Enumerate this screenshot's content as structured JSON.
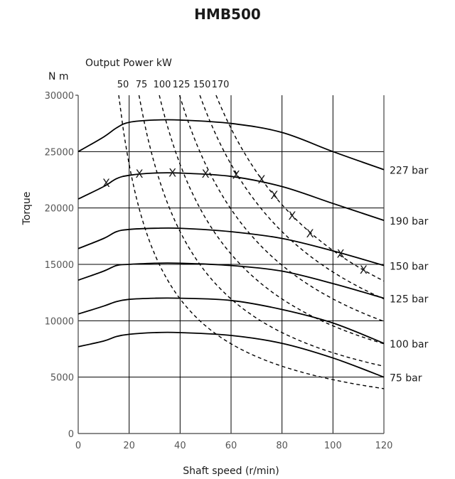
{
  "chart_data": {
    "type": "line",
    "title": "HMB500",
    "xlabel": "Shaft speed (r/min)",
    "ylabel": "Torque",
    "yunit": "N m",
    "power_axis_label": "Output Power kW",
    "xlim": [
      0,
      120
    ],
    "ylim": [
      0,
      30000
    ],
    "xticks": [
      "0",
      "20",
      "40",
      "60",
      "80",
      "100",
      "120"
    ],
    "yticks": [
      "0",
      "5000",
      "10000",
      "15000",
      "20000",
      "25000",
      "30000"
    ],
    "grid": true,
    "torque_series": [
      {
        "name": "227 bar",
        "points": [
          [
            0,
            25000
          ],
          [
            10,
            26300
          ],
          [
            15,
            27100
          ],
          [
            20,
            27600
          ],
          [
            30,
            27800
          ],
          [
            40,
            27800
          ],
          [
            60,
            27500
          ],
          [
            80,
            26700
          ],
          [
            100,
            25000
          ],
          [
            120,
            23400
          ]
        ]
      },
      {
        "name": "190 bar",
        "points": [
          [
            0,
            20800
          ],
          [
            10,
            21900
          ],
          [
            15,
            22600
          ],
          [
            20,
            22900
          ],
          [
            30,
            23100
          ],
          [
            40,
            23100
          ],
          [
            60,
            22800
          ],
          [
            80,
            21900
          ],
          [
            100,
            20400
          ],
          [
            120,
            18900
          ]
        ]
      },
      {
        "name": "150 bar",
        "points": [
          [
            0,
            16400
          ],
          [
            10,
            17300
          ],
          [
            15,
            17900
          ],
          [
            20,
            18100
          ],
          [
            30,
            18200
          ],
          [
            40,
            18200
          ],
          [
            60,
            17900
          ],
          [
            80,
            17300
          ],
          [
            100,
            16200
          ],
          [
            120,
            14900
          ]
        ]
      },
      {
        "name": "125 bar",
        "points": [
          [
            0,
            13600
          ],
          [
            10,
            14400
          ],
          [
            15,
            14900
          ],
          [
            20,
            15000
          ],
          [
            30,
            15100
          ],
          [
            40,
            15100
          ],
          [
            60,
            14900
          ],
          [
            80,
            14400
          ],
          [
            100,
            13300
          ],
          [
            120,
            12000
          ]
        ]
      },
      {
        "name": "100 bar",
        "points": [
          [
            0,
            10600
          ],
          [
            10,
            11300
          ],
          [
            15,
            11700
          ],
          [
            20,
            11900
          ],
          [
            30,
            12000
          ],
          [
            40,
            12000
          ],
          [
            60,
            11800
          ],
          [
            80,
            11000
          ],
          [
            100,
            9800
          ],
          [
            120,
            8000
          ]
        ]
      },
      {
        "name": "75 bar",
        "points": [
          [
            0,
            7700
          ],
          [
            10,
            8200
          ],
          [
            15,
            8600
          ],
          [
            20,
            8800
          ],
          [
            30,
            8950
          ],
          [
            40,
            8950
          ],
          [
            60,
            8700
          ],
          [
            80,
            8000
          ],
          [
            100,
            6700
          ],
          [
            120,
            5000
          ]
        ]
      }
    ],
    "power_series": [
      {
        "name": "50",
        "power_kw": 50
      },
      {
        "name": "75",
        "power_kw": 75
      },
      {
        "name": "100",
        "power_kw": 100
      },
      {
        "name": "125",
        "power_kw": 125
      },
      {
        "name": "150",
        "power_kw": 150
      },
      {
        "name": "170",
        "power_kw": 170
      }
    ],
    "markers": [
      [
        11,
        22200
      ],
      [
        24,
        23000
      ],
      [
        37,
        23100
      ],
      [
        50,
        23000
      ],
      [
        62,
        22900
      ],
      [
        72,
        22500
      ],
      [
        77,
        21100
      ],
      [
        84,
        19300
      ],
      [
        91,
        17700
      ],
      [
        103,
        15900
      ],
      [
        112,
        14500
      ]
    ],
    "marker_symbol": "X"
  }
}
